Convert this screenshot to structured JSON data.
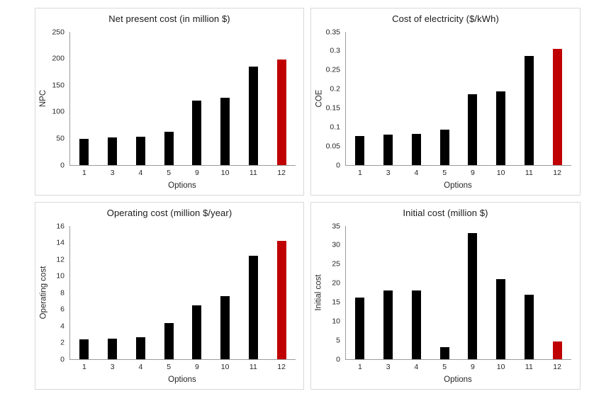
{
  "figure": {
    "background": "#ffffff",
    "panel_border": "#d9d9d9",
    "axis_color": "#9b9b9b",
    "bar_color": "#000000",
    "highlight_color": "#c00000"
  },
  "chart_data": [
    {
      "id": "net-present-cost",
      "type": "bar",
      "title": "Net present cost (in million $)",
      "xlabel": "Options",
      "ylabel": "NPC",
      "categories": [
        "1",
        "3",
        "4",
        "5",
        "9",
        "10",
        "11",
        "12"
      ],
      "values": [
        49,
        52,
        53,
        62,
        121,
        126,
        185,
        198
      ],
      "ylim": [
        0,
        250
      ],
      "yticks": [
        "0",
        "50",
        "100",
        "150",
        "200",
        "250"
      ],
      "bar_color": "#000000",
      "highlight_index": 7,
      "highlight_color": "#c00000",
      "grid": false,
      "legend": false
    },
    {
      "id": "cost-of-electricity",
      "type": "bar",
      "title": "Cost of electricity ($/kWh)",
      "xlabel": "Options",
      "ylabel": "COE",
      "categories": [
        "1",
        "3",
        "4",
        "5",
        "9",
        "10",
        "11",
        "12"
      ],
      "values": [
        0.077,
        0.08,
        0.082,
        0.094,
        0.187,
        0.194,
        0.286,
        0.306
      ],
      "ylim": [
        0,
        0.35
      ],
      "yticks": [
        "0",
        "0.05",
        "0.1",
        "0.15",
        "0.2",
        "0.25",
        "0.3",
        "0.35"
      ],
      "bar_color": "#000000",
      "highlight_index": 7,
      "highlight_color": "#c00000",
      "grid": false,
      "legend": false
    },
    {
      "id": "operating-cost",
      "type": "bar",
      "title": "Operating cost (million $/year)",
      "xlabel": "Options",
      "ylabel": "Operating cost",
      "categories": [
        "1",
        "3",
        "4",
        "5",
        "9",
        "10",
        "11",
        "12"
      ],
      "values": [
        2.4,
        2.5,
        2.6,
        4.3,
        6.5,
        7.6,
        12.4,
        14.2
      ],
      "ylim": [
        0,
        16
      ],
      "yticks": [
        "0",
        "2",
        "4",
        "6",
        "8",
        "10",
        "12",
        "14",
        "16"
      ],
      "bar_color": "#000000",
      "highlight_index": 7,
      "highlight_color": "#c00000",
      "grid": false,
      "legend": false
    },
    {
      "id": "initial-cost",
      "type": "bar",
      "title": "Initial cost (million $)",
      "xlabel": "Options",
      "ylabel": "Initial cost",
      "categories": [
        "1",
        "3",
        "4",
        "5",
        "9",
        "10",
        "11",
        "12"
      ],
      "values": [
        16.2,
        18,
        18.1,
        3.1,
        33.2,
        21,
        17,
        4.7
      ],
      "ylim": [
        0,
        35
      ],
      "yticks": [
        "0",
        "5",
        "10",
        "15",
        "20",
        "25",
        "30",
        "35"
      ],
      "bar_color": "#000000",
      "highlight_index": 7,
      "highlight_color": "#c00000",
      "grid": false,
      "legend": false
    }
  ]
}
